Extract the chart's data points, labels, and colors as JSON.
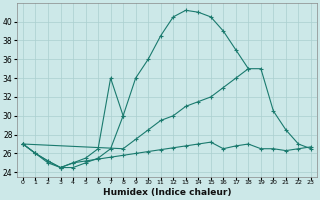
{
  "xlabel": "Humidex (Indice chaleur)",
  "x": [
    0,
    1,
    2,
    3,
    4,
    5,
    6,
    7,
    8,
    9,
    10,
    11,
    12,
    13,
    14,
    15,
    16,
    17,
    18,
    19,
    20,
    21,
    22,
    23
  ],
  "line1": [
    27,
    26,
    25,
    24.5,
    24.5,
    25,
    25.5,
    26.5,
    30,
    34,
    36,
    38.5,
    40.5,
    41.2,
    41.0,
    40.5,
    39,
    37,
    35,
    null,
    null,
    null,
    null,
    null
  ],
  "line2": [
    27,
    26,
    25.2,
    24.5,
    25,
    25.5,
    26.5,
    34,
    30,
    null,
    null,
    null,
    null,
    null,
    null,
    null,
    null,
    null,
    null,
    null,
    null,
    null,
    null,
    null
  ],
  "line3": [
    27,
    null,
    null,
    null,
    null,
    null,
    null,
    null,
    26.5,
    27.5,
    28.5,
    29.5,
    30,
    31,
    31.5,
    32,
    33,
    34,
    35,
    35,
    30.5,
    28.5,
    27,
    26.5
  ],
  "line4": [
    27,
    26,
    25.2,
    24.5,
    25,
    25.2,
    25.4,
    25.6,
    25.8,
    26,
    26.2,
    26.4,
    26.6,
    26.8,
    27,
    27.2,
    26.5,
    26.8,
    27,
    26.5,
    26.5,
    26.3,
    26.5,
    26.7
  ],
  "color": "#1a7a6e",
  "bg_color": "#cce8e8",
  "grid_color": "#aacfcf",
  "ylim": [
    23.5,
    42
  ],
  "yticks": [
    24,
    26,
    28,
    30,
    32,
    34,
    36,
    38,
    40
  ],
  "xlim": [
    -0.5,
    23.5
  ]
}
